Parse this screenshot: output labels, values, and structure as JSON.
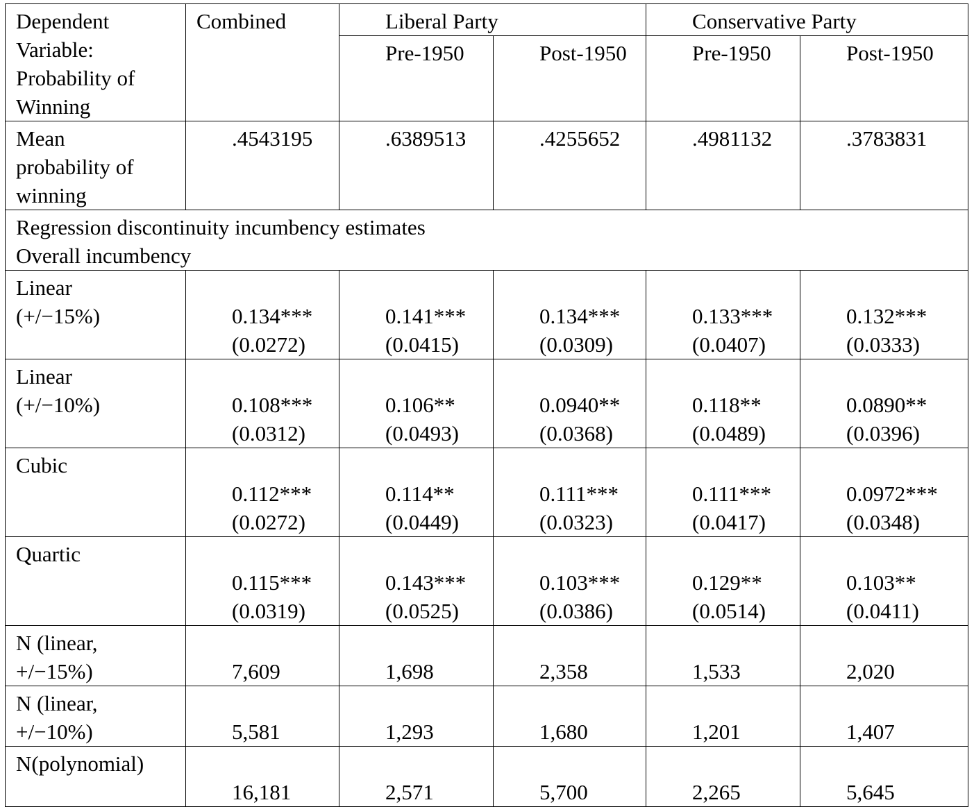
{
  "header": {
    "dep_var": [
      "Dependent",
      "Variable:",
      "Probability of",
      "Winning"
    ],
    "combined": "Combined",
    "liberal": "Liberal Party",
    "conservative": "Conservative Party",
    "lib_pre": "Pre-1950",
    "lib_post": "Post-1950",
    "con_pre": "Pre-1950",
    "con_post": "Post-1950"
  },
  "mean_row": {
    "label": [
      "Mean",
      "probability of",
      "winning"
    ],
    "values": [
      ".4543195",
      ".6389513",
      ".4255652",
      ".4981132",
      ".3783831"
    ]
  },
  "section": {
    "line1": "Regression discontinuity incumbency estimates",
    "line2": "Overall incumbency"
  },
  "estimates": [
    {
      "label": [
        "Linear",
        "(+/−15%)"
      ],
      "coef": [
        "0.134***",
        "0.141***",
        "0.134***",
        "0.133***",
        "0.132***"
      ],
      "se": [
        "(0.0272)",
        "(0.0415)",
        "(0.0309)",
        "(0.0407)",
        "(0.0333)"
      ]
    },
    {
      "label": [
        "Linear",
        "(+/−10%)"
      ],
      "coef": [
        "0.108***",
        "0.106**",
        "0.0940**",
        "0.118**",
        "0.0890**"
      ],
      "se": [
        "(0.0312)",
        "(0.0493)",
        "(0.0368)",
        "(0.0489)",
        "(0.0396)"
      ]
    },
    {
      "label": [
        "Cubic"
      ],
      "coef": [
        "0.112***",
        "0.114**",
        "0.111***",
        "0.111***",
        "0.0972***"
      ],
      "se": [
        "(0.0272)",
        "(0.0449)",
        "(0.0323)",
        "(0.0417)",
        "(0.0348)"
      ]
    },
    {
      "label": [
        "Quartic"
      ],
      "coef": [
        "0.115***",
        "0.143***",
        "0.103***",
        "0.129**",
        "0.103**"
      ],
      "se": [
        "(0.0319)",
        "(0.0525)",
        "(0.0386)",
        "(0.0514)",
        "(0.0411)"
      ]
    }
  ],
  "n_rows": [
    {
      "label": [
        "N (linear,",
        "+/−15%)"
      ],
      "values": [
        "7,609",
        "1,698",
        "2,358",
        "1,533",
        "2,020"
      ]
    },
    {
      "label": [
        "N (linear,",
        "+/−10%)"
      ],
      "values": [
        "5,581",
        "1,293",
        "1,680",
        "1,201",
        "1,407"
      ]
    },
    {
      "label": [
        "N(polynomial)"
      ],
      "values": [
        "16,181",
        "2,571",
        "5,700",
        "2,265",
        "5,645"
      ]
    }
  ]
}
